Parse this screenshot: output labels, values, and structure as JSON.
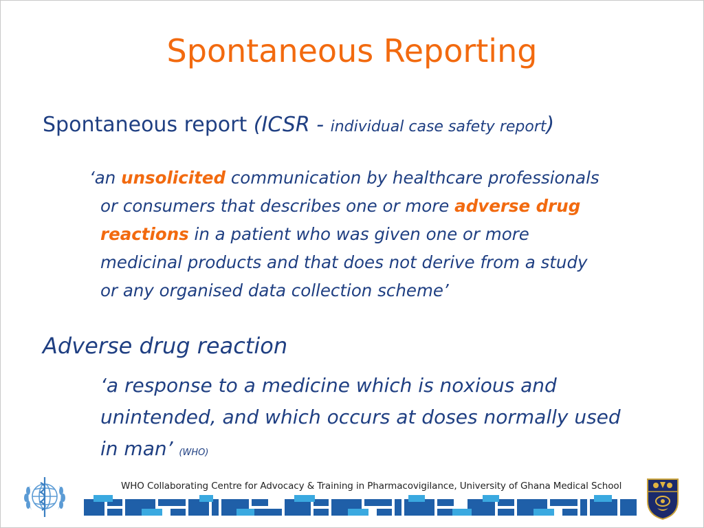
{
  "slide": {
    "title": "Spontaneous Reporting",
    "heading1": {
      "main": "Spontaneous report ",
      "paren_open": "(ICSR - ",
      "small": "individual case safety report",
      "paren_close": ")"
    },
    "quote1": {
      "open_mark": "‘",
      "seg_an": "an ",
      "highlight1": "unsolicited",
      "seg_after1": " communication by healthcare professionals",
      "line2_pre": "or consumers that describes one or more ",
      "highlight2a": "adverse drug",
      "highlight2b": "reactions",
      "line3_post": " in a patient who was given one or more",
      "line4": "medicinal products and that does not derive from a study",
      "line5": "or any organised data collection scheme’"
    },
    "heading2": "Adverse drug reaction",
    "quote2": {
      "line1": "‘a response to a medicine which is noxious and",
      "line2": "unintended, and which occurs at doses normally used",
      "line3": "in man’ ",
      "source": "(WHO)"
    }
  },
  "footer": {
    "text": "WHO Collaborating Centre for Advocacy & Training in Pharmacovigilance, University of Ghana Medical School",
    "colors": {
      "dark_blue": "#1f5fa8",
      "light_blue": "#3aa9e0"
    }
  },
  "colors": {
    "title": "#f26a0f",
    "body": "#1f3f82",
    "highlight": "#f26a0f"
  },
  "icons": {
    "left_logo": "who-emblem-icon",
    "right_logo": "university-crest-icon"
  }
}
